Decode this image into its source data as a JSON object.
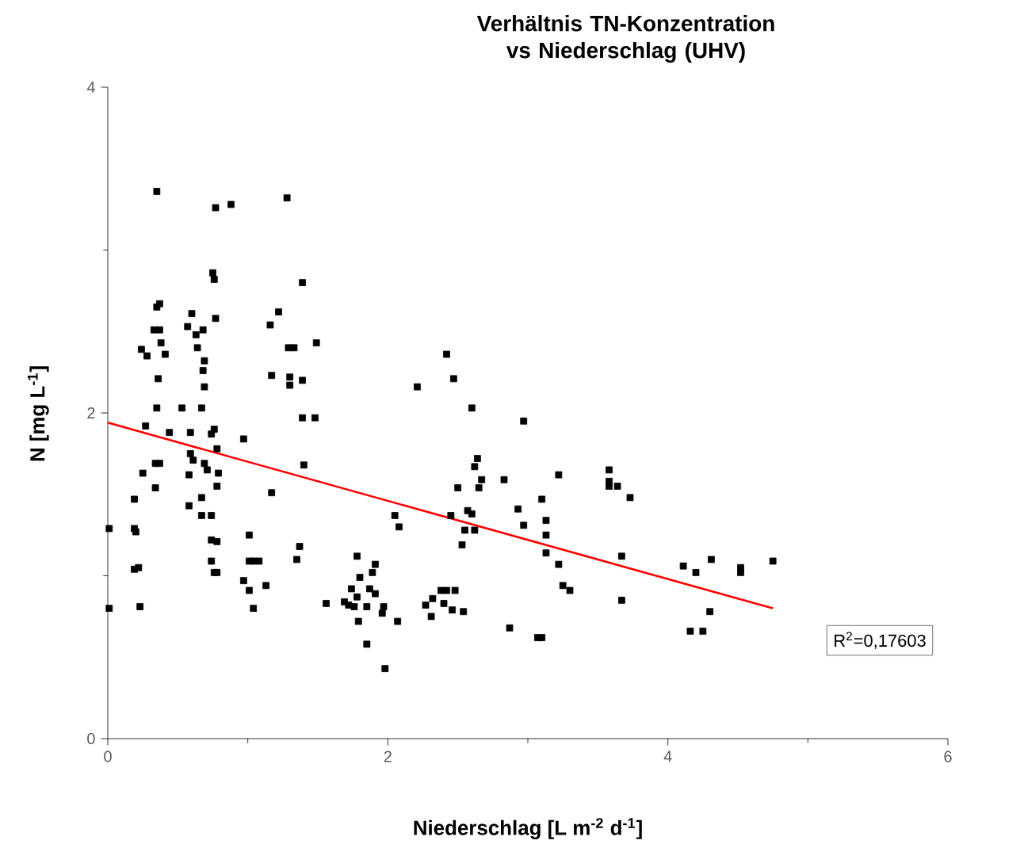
{
  "chart_data": {
    "type": "scatter",
    "title": "Verhältnis TN-Konzentration vs Niederschlag (UHV)",
    "xlabel": "Niederschlag [L m$^{-2}$ d$^{-1}$]",
    "ylabel": "N [mg L$^{-1}$]",
    "annotations": [
      "R$^{2}$=0,17603"
    ],
    "xlim": [
      0,
      6
    ],
    "ylim": [
      0,
      4
    ],
    "xticks": [
      0,
      2,
      4,
      6
    ],
    "yticks": [
      0,
      2,
      4
    ],
    "grid": false,
    "marker": "square",
    "series": [
      {
        "color": "#000000",
        "x": [
          0.35,
          0.77,
          0.88,
          1.28,
          0.75,
          0.76,
          1.39,
          0.37,
          0.35,
          0.6,
          0.77,
          1.22,
          0.33,
          0.37,
          0.57,
          0.63,
          0.68,
          1.16,
          0.24,
          0.28,
          0.38,
          0.41,
          0.64,
          0.69,
          0.68,
          0.36,
          0.69,
          1.29,
          1.33,
          1.49,
          1.17,
          1.3,
          1.3,
          1.39,
          0.35,
          0.53,
          0.67,
          1.39,
          1.48,
          0.27,
          0.44,
          0.59,
          0.74,
          0.76,
          0.97,
          0.78,
          0.59,
          0.61,
          0.69,
          0.71,
          0.34,
          0.37,
          0.25,
          1.4,
          0.34,
          0.58,
          0.79,
          0.78,
          0.19,
          0.58,
          0.67,
          0.67,
          0.74,
          1.17,
          0.01,
          0.19,
          0.2,
          0.74,
          0.78,
          1.01,
          1.37,
          1.35,
          0.19,
          0.22,
          0.74,
          0.76,
          0.78,
          1.01,
          1.04,
          1.08,
          0.97,
          1.13,
          1.01,
          0.01,
          0.23,
          1.04,
          1.56,
          1.69,
          1.74,
          1.78,
          1.91,
          1.89,
          1.8,
          1.87,
          1.91,
          1.78,
          1.72,
          1.76,
          1.85,
          1.97,
          1.96,
          1.79,
          2.07,
          1.85,
          1.98,
          2.05,
          2.08,
          2.42,
          2.21,
          2.47,
          2.6,
          2.97,
          2.64,
          2.62,
          2.5,
          2.65,
          2.67,
          2.83,
          3.22,
          3.58,
          3.58,
          3.58,
          3.64,
          3.73,
          2.45,
          2.57,
          2.6,
          2.55,
          2.62,
          2.53,
          2.93,
          3.1,
          2.97,
          3.13,
          3.13,
          3.13,
          3.22,
          3.25,
          3.3,
          3.67,
          3.67,
          2.87,
          3.07,
          3.1,
          2.38,
          2.42,
          2.48,
          2.27,
          2.32,
          2.4,
          2.46,
          2.54,
          2.31,
          4.11,
          4.2,
          4.31,
          4.52,
          4.52,
          4.75,
          4.3,
          4.16,
          4.25
        ],
        "values": [
          3.36,
          3.26,
          3.28,
          3.32,
          2.86,
          2.82,
          2.8,
          2.67,
          2.65,
          2.61,
          2.58,
          2.62,
          2.51,
          2.51,
          2.53,
          2.48,
          2.51,
          2.54,
          2.39,
          2.35,
          2.43,
          2.36,
          2.4,
          2.32,
          2.26,
          2.21,
          2.16,
          2.4,
          2.4,
          2.43,
          2.23,
          2.22,
          2.17,
          2.2,
          2.03,
          2.03,
          2.03,
          1.97,
          1.97,
          1.92,
          1.88,
          1.88,
          1.87,
          1.9,
          1.84,
          1.78,
          1.75,
          1.71,
          1.69,
          1.65,
          1.69,
          1.69,
          1.63,
          1.68,
          1.54,
          1.62,
          1.63,
          1.55,
          1.47,
          1.43,
          1.48,
          1.37,
          1.37,
          1.51,
          1.29,
          1.29,
          1.27,
          1.22,
          1.21,
          1.25,
          1.18,
          1.1,
          1.04,
          1.05,
          1.09,
          1.02,
          1.02,
          1.09,
          1.09,
          1.09,
          0.97,
          0.94,
          0.91,
          0.8,
          0.81,
          0.8,
          0.83,
          0.84,
          0.92,
          1.12,
          1.07,
          1.02,
          0.99,
          0.92,
          0.89,
          0.87,
          0.82,
          0.81,
          0.81,
          0.81,
          0.77,
          0.72,
          0.72,
          0.58,
          0.43,
          1.37,
          1.3,
          2.36,
          2.16,
          2.21,
          2.03,
          1.95,
          1.72,
          1.67,
          1.54,
          1.54,
          1.59,
          1.59,
          1.62,
          1.65,
          1.58,
          1.55,
          1.55,
          1.48,
          1.37,
          1.4,
          1.38,
          1.28,
          1.28,
          1.19,
          1.41,
          1.47,
          1.31,
          1.34,
          1.25,
          1.14,
          1.07,
          0.94,
          0.91,
          1.12,
          0.85,
          0.68,
          0.62,
          0.62,
          0.91,
          0.91,
          0.91,
          0.82,
          0.86,
          0.83,
          0.79,
          0.78,
          0.75,
          1.06,
          1.02,
          1.1,
          1.05,
          1.02,
          1.09,
          0.78,
          0.66,
          0.66
        ]
      },
      {
        "type": "line",
        "color": "#ff0000",
        "marker": "none",
        "x": [
          0,
          4.75
        ],
        "values": [
          1.94,
          0.8
        ]
      }
    ]
  }
}
